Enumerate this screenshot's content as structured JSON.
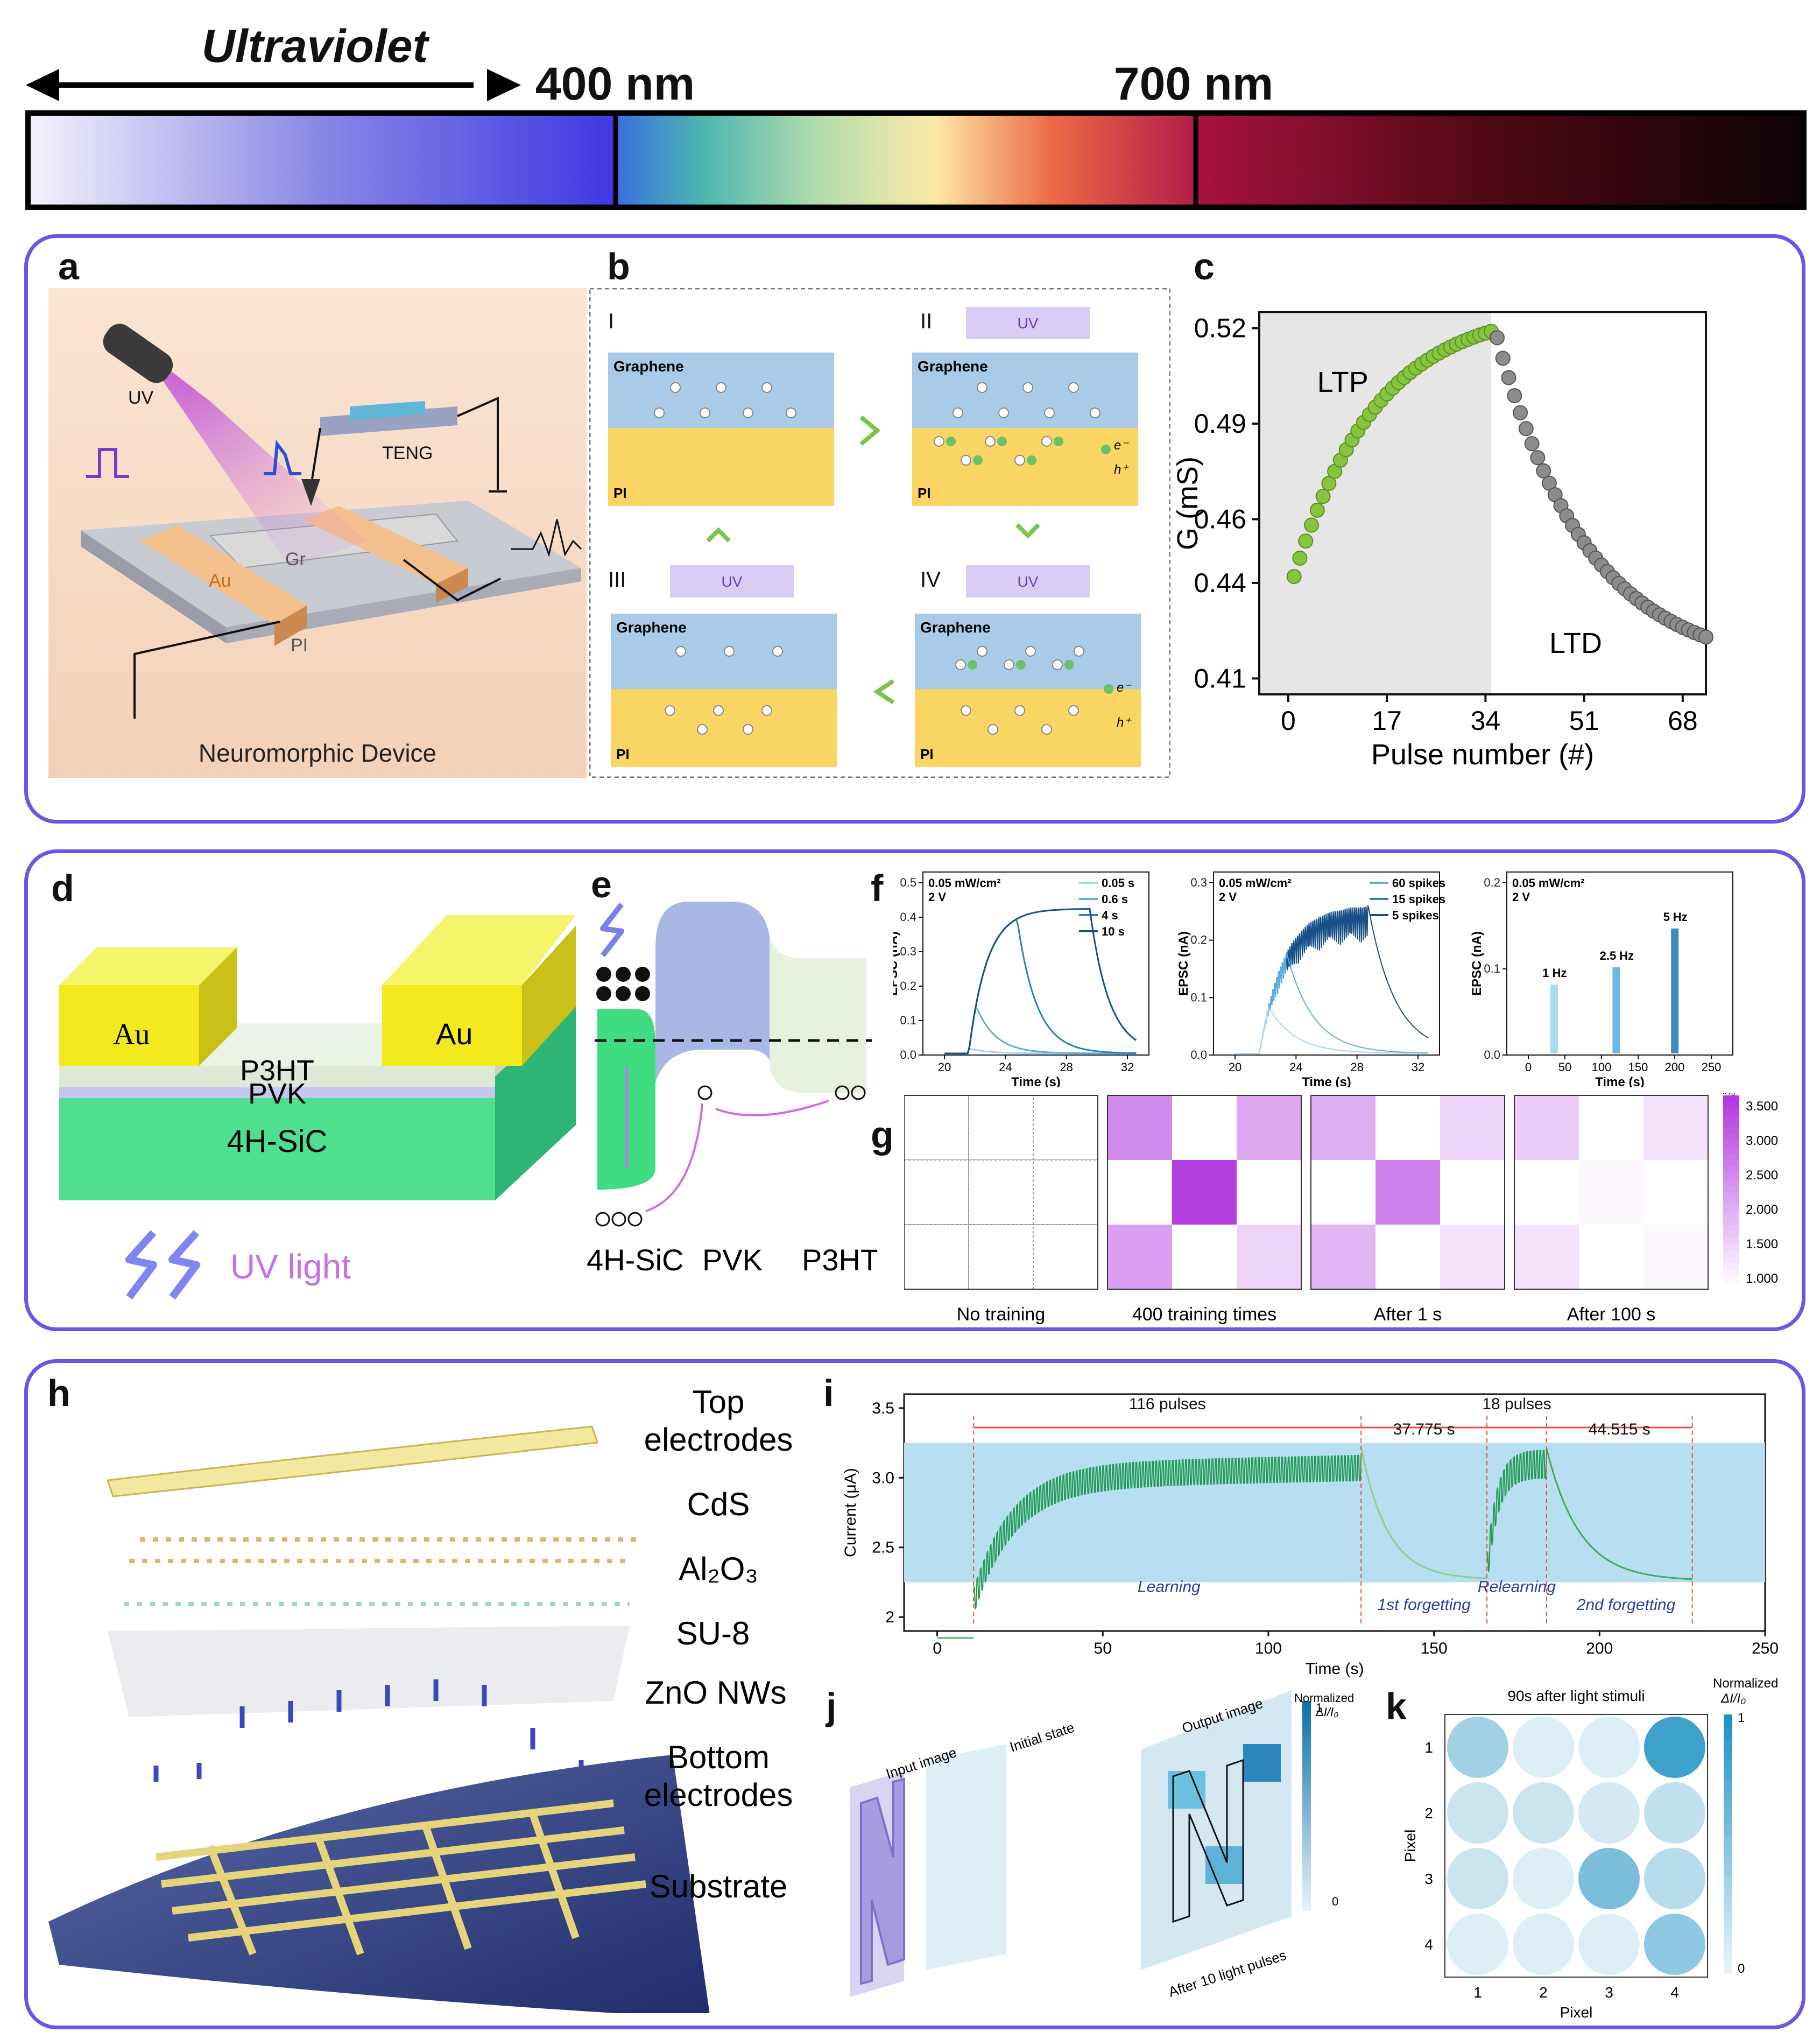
{
  "spectrum": {
    "uv_label": "Ultraviolet",
    "mark_400": "400 nm",
    "mark_700": "700 nm"
  },
  "panel_labels": [
    "a",
    "b",
    "c",
    "d",
    "e",
    "f",
    "g",
    "h",
    "i",
    "j",
    "k"
  ],
  "panel_a": {
    "uv": "UV",
    "teng": "TENG",
    "au": "Au",
    "gr": "Gr",
    "pi": "PI",
    "caption": "Neuromorphic Device"
  },
  "panel_b": {
    "stages": [
      {
        "roman": "I",
        "uv": false
      },
      {
        "roman": "II",
        "uv": true
      },
      {
        "roman": "III",
        "uv": true
      },
      {
        "roman": "IV",
        "uv": true
      }
    ],
    "graphene": "Graphene",
    "pi": "PI",
    "uv": "UV",
    "electron": "e⁻",
    "hole": "h⁺"
  },
  "chart_data": [
    {
      "id": "c",
      "type": "scatter",
      "xlabel": "Pulse number (#)",
      "ylabel": "G (mS)",
      "xticks": [
        "0",
        "17",
        "34",
        "51",
        "68"
      ],
      "yticks": [
        "0.52",
        "0.49",
        "0.46",
        "0.44",
        "0.41"
      ],
      "xlim": [
        -5,
        72
      ],
      "ylim": [
        0.405,
        0.525
      ],
      "annotations": [
        "LTP",
        "LTD"
      ],
      "series": [
        {
          "name": "LTP",
          "color": "#86c440",
          "x_start": 1,
          "x_end": 35,
          "y_start": 0.442,
          "y_end": 0.519
        },
        {
          "name": "LTD",
          "color": "#8c8c8c",
          "x_start": 36,
          "x_end": 72,
          "y_start": 0.517,
          "y_end": 0.423
        }
      ]
    },
    {
      "id": "f",
      "type": "line",
      "subplots": [
        {
          "note1": "0.05 mW/cm²",
          "note2": "2 V",
          "ylabel": "EPSC (nA)",
          "xlabel": "Time (s)",
          "yticks": [
            "0.0",
            "0.1",
            "0.2",
            "0.3",
            "0.4",
            "0.5"
          ],
          "xticks": [
            "20",
            "24",
            "28",
            "32"
          ],
          "legend": [
            "0.05 s",
            "0.6 s",
            "4 s",
            "10 s"
          ]
        },
        {
          "note1": "0.05 mW/cm²",
          "note2": "2 V",
          "ylabel": "EPSC (nA)",
          "xlabel": "Time (s)",
          "yticks": [
            "0.0",
            "0.1",
            "0.2",
            "0.3"
          ],
          "xticks": [
            "20",
            "24",
            "28",
            "32"
          ],
          "legend": [
            "60 spikes",
            "15 spikes",
            "5 spikes"
          ]
        },
        {
          "note1": "0.05 mW/cm²",
          "note2": "2 V",
          "ylabel": "EPSC (nA)",
          "xlabel": "Time (s)",
          "yticks": [
            "0.0",
            "0.1",
            "0.2"
          ],
          "xticks": [
            "0",
            "50",
            "100",
            "150",
            "200",
            "250"
          ],
          "peaks": [
            "1 Hz",
            "2.5 Hz",
            "5 Hz"
          ]
        }
      ]
    },
    {
      "id": "g",
      "type": "heatmap",
      "titles": [
        "No training",
        "400 training times",
        "After 1 s",
        "After 100 s"
      ],
      "colorbar_title": "I/I₀",
      "colorbar_ticks": [
        "3.500",
        "3.000",
        "2.500",
        "2.000",
        "1.500",
        "1.000"
      ],
      "vmin": 1.0,
      "vmax": 3.7,
      "grids": [
        [
          [
            1.0,
            1.0,
            1.0
          ],
          [
            1.0,
            1.0,
            1.0
          ],
          [
            1.0,
            1.0,
            1.0
          ]
        ],
        [
          [
            2.6,
            1.0,
            2.2
          ],
          [
            1.0,
            3.6,
            1.0
          ],
          [
            2.3,
            1.0,
            1.6
          ]
        ],
        [
          [
            2.1,
            1.0,
            1.6
          ],
          [
            1.0,
            2.7,
            1.0
          ],
          [
            2.0,
            1.0,
            1.4
          ]
        ],
        [
          [
            1.7,
            1.0,
            1.4
          ],
          [
            1.0,
            1.1,
            1.0
          ],
          [
            1.4,
            1.0,
            1.1
          ]
        ]
      ]
    },
    {
      "id": "i",
      "type": "line",
      "xlabel": "Time (s)",
      "ylabel": "Current (μA)",
      "xticks": [
        "0",
        "50",
        "100",
        "150",
        "200",
        "250"
      ],
      "yticks": [
        "3.5",
        "3.0",
        "2.5",
        "2"
      ],
      "xlim": [
        -10,
        250
      ],
      "ylim": [
        1.9,
        3.6
      ],
      "band": [
        2.25,
        3.25
      ],
      "segments": [
        "116 pulses",
        "37.775 s",
        "18 pulses",
        "44.515 s"
      ],
      "phases": [
        "Learning",
        "1st forgetting",
        "Relearning",
        "2nd forgetting"
      ]
    },
    {
      "id": "k",
      "type": "heatmap",
      "title": "90s after light stimuli",
      "xlabel": "Pixel",
      "ylabel": "Pixel",
      "ticks": [
        "1",
        "2",
        "3",
        "4"
      ],
      "colorbar_title_1": "Normalized",
      "colorbar_title_2": "ΔI/I₀",
      "colorbar_ticks": [
        "1",
        "0"
      ],
      "values": [
        [
          0.35,
          0.05,
          0.05,
          0.85
        ],
        [
          0.15,
          0.15,
          0.1,
          0.2
        ],
        [
          0.15,
          0.05,
          0.55,
          0.25
        ],
        [
          0.05,
          0.05,
          0.05,
          0.45
        ]
      ]
    }
  ],
  "panel_d": {
    "au": "Au",
    "p3ht": "P3HT",
    "pvk": "PVK",
    "sic": "4H-SiC",
    "uv_light": "UV light"
  },
  "panel_e": {
    "labels": [
      "4H-SiC",
      "PVK",
      "P3HT"
    ]
  },
  "panel_h": {
    "layers": [
      "Top",
      "electrodes",
      "CdS",
      "Al₂O₃",
      "SU-8",
      "ZnO NWs",
      "Bottom",
      "electrodes",
      "Substrate"
    ]
  },
  "panel_j": {
    "input": "Input image",
    "initial": "Initial state",
    "output": "Output image",
    "after": "After 10 light pulses",
    "cb1": "Normalized",
    "cb2": "ΔI/I₀",
    "cb_max": "1",
    "cb_min": "0"
  }
}
